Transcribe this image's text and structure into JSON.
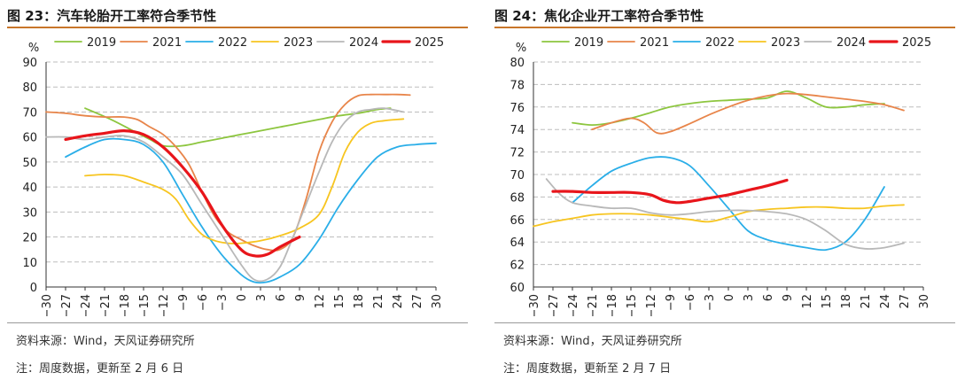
{
  "chart_data": [
    {
      "type": "line",
      "title": "图 23：汽车轮胎开工率符合季节性",
      "ylabel": "%",
      "xlabel": "",
      "xlim": [
        -30,
        30
      ],
      "ylim": [
        0,
        90
      ],
      "x_ticks": [
        -30,
        -27,
        -24,
        -21,
        -18,
        -15,
        -12,
        -9,
        -6,
        -3,
        0,
        3,
        6,
        9,
        12,
        15,
        18,
        21,
        24,
        27,
        30
      ],
      "y_ticks": [
        0,
        10,
        20,
        30,
        40,
        50,
        60,
        70,
        80,
        90
      ],
      "grid": "horizontal-dashed",
      "legend_position": "top",
      "series": [
        {
          "name": "2019",
          "color": "#8dc63f",
          "width": 1.8,
          "points": [
            [
              -24,
              71.5
            ],
            [
              -20,
              67
            ],
            [
              -17,
              63
            ],
            [
              -14,
              59
            ],
            [
              -12,
              56.5
            ],
            [
              -9,
              56.5
            ],
            [
              -6,
              58
            ],
            [
              -3,
              59.5
            ],
            [
              0,
              61
            ],
            [
              3,
              62.5
            ],
            [
              6,
              64
            ],
            [
              9,
              65.5
            ],
            [
              12,
              67
            ],
            [
              15,
              68.5
            ],
            [
              18,
              69.5
            ],
            [
              21,
              71
            ],
            [
              23,
              71.5
            ]
          ]
        },
        {
          "name": "2021",
          "color": "#e8854a",
          "width": 1.8,
          "points": [
            [
              -30,
              70
            ],
            [
              -27,
              69.5
            ],
            [
              -24,
              68.5
            ],
            [
              -21,
              68
            ],
            [
              -18,
              68
            ],
            [
              -16,
              67
            ],
            [
              -14,
              64
            ],
            [
              -12,
              61
            ],
            [
              -10,
              56
            ],
            [
              -8,
              49
            ],
            [
              -6,
              38
            ],
            [
              -4,
              28
            ],
            [
              -2,
              22
            ],
            [
              0,
              19
            ],
            [
              2,
              16.5
            ],
            [
              4,
              15
            ],
            [
              6,
              15
            ],
            [
              8,
              20
            ],
            [
              10,
              35
            ],
            [
              12,
              54
            ],
            [
              14,
              66
            ],
            [
              16,
              73
            ],
            [
              18,
              76.5
            ],
            [
              20,
              77
            ],
            [
              22,
              77
            ],
            [
              24,
              77
            ],
            [
              26,
              76.8
            ]
          ]
        },
        {
          "name": "2022",
          "color": "#2aaee8",
          "width": 1.8,
          "points": [
            [
              -27,
              52
            ],
            [
              -24,
              56
            ],
            [
              -21,
              59
            ],
            [
              -18,
              59
            ],
            [
              -15,
              57
            ],
            [
              -12,
              50
            ],
            [
              -9,
              37
            ],
            [
              -6,
              24
            ],
            [
              -3,
              13
            ],
            [
              0,
              5
            ],
            [
              2,
              2
            ],
            [
              4,
              2
            ],
            [
              6,
              4
            ],
            [
              9,
              9
            ],
            [
              12,
              19
            ],
            [
              15,
              32
            ],
            [
              18,
              43
            ],
            [
              21,
              52
            ],
            [
              24,
              56
            ],
            [
              27,
              57
            ],
            [
              30,
              57.5
            ]
          ]
        },
        {
          "name": "2023",
          "color": "#f7c520",
          "width": 1.8,
          "points": [
            [
              -24,
              44.5
            ],
            [
              -21,
              45
            ],
            [
              -18,
              44.5
            ],
            [
              -15,
              42
            ],
            [
              -12,
              39
            ],
            [
              -10,
              35
            ],
            [
              -8,
              27
            ],
            [
              -6,
              21
            ],
            [
              -4,
              18.5
            ],
            [
              -2,
              17.5
            ],
            [
              0,
              17.5
            ],
            [
              3,
              18.5
            ],
            [
              6,
              20.5
            ],
            [
              9,
              23.5
            ],
            [
              12,
              29
            ],
            [
              14,
              40
            ],
            [
              16,
              54
            ],
            [
              18,
              62
            ],
            [
              20,
              65.5
            ],
            [
              22,
              66.5
            ],
            [
              25,
              67.2
            ]
          ]
        },
        {
          "name": "2024",
          "color": "#b8b8b8",
          "width": 1.8,
          "points": [
            [
              -30,
              60
            ],
            [
              -27,
              60
            ],
            [
              -24,
              59
            ],
            [
              -21,
              60
            ],
            [
              -18,
              60.5
            ],
            [
              -15,
              58
            ],
            [
              -12,
              52
            ],
            [
              -9,
              45
            ],
            [
              -6,
              33
            ],
            [
              -3,
              21
            ],
            [
              0,
              9
            ],
            [
              2,
              3
            ],
            [
              4,
              3
            ],
            [
              6,
              8
            ],
            [
              8,
              20
            ],
            [
              10,
              33
            ],
            [
              12,
              46
            ],
            [
              14,
              58
            ],
            [
              16,
              66
            ],
            [
              18,
              70
            ],
            [
              20,
              71
            ],
            [
              22,
              71.5
            ],
            [
              25,
              70
            ]
          ]
        },
        {
          "name": "2025",
          "color": "#e8151b",
          "width": 3.2,
          "points": [
            [
              -27,
              59
            ],
            [
              -24,
              60.5
            ],
            [
              -21,
              61.5
            ],
            [
              -18,
              62.5
            ],
            [
              -15,
              61
            ],
            [
              -12,
              56
            ],
            [
              -9,
              48
            ],
            [
              -6,
              38
            ],
            [
              -3,
              25
            ],
            [
              0,
              15
            ],
            [
              2,
              12.5
            ],
            [
              4,
              13
            ],
            [
              6,
              16
            ],
            [
              9,
              20
            ]
          ]
        }
      ]
    },
    {
      "type": "line",
      "title": "图 24：焦化企业开工率符合季节性",
      "ylabel": "%",
      "xlabel": "",
      "xlim": [
        -30,
        30
      ],
      "ylim": [
        60,
        80
      ],
      "x_ticks": [
        -30,
        -27,
        -24,
        -21,
        -18,
        -15,
        -12,
        -9,
        -6,
        -3,
        0,
        3,
        6,
        9,
        12,
        15,
        18,
        21,
        24,
        27,
        30
      ],
      "y_ticks": [
        60,
        62,
        64,
        66,
        68,
        70,
        72,
        74,
        76,
        78,
        80
      ],
      "grid": "horizontal-dashed",
      "legend_position": "top",
      "series": [
        {
          "name": "2019",
          "color": "#8dc63f",
          "width": 1.8,
          "points": [
            [
              -24,
              74.6
            ],
            [
              -21,
              74.4
            ],
            [
              -18,
              74.6
            ],
            [
              -15,
              75
            ],
            [
              -12,
              75.5
            ],
            [
              -9,
              76
            ],
            [
              -6,
              76.3
            ],
            [
              -3,
              76.5
            ],
            [
              0,
              76.6
            ],
            [
              3,
              76.7
            ],
            [
              6,
              76.8
            ],
            [
              9,
              77.4
            ],
            [
              12,
              76.8
            ],
            [
              15,
              76
            ],
            [
              18,
              76
            ],
            [
              21,
              76.2
            ],
            [
              24,
              76.3
            ]
          ]
        },
        {
          "name": "2021",
          "color": "#e8854a",
          "width": 1.8,
          "points": [
            [
              -21,
              74
            ],
            [
              -18,
              74.6
            ],
            [
              -15,
              75
            ],
            [
              -13,
              74.6
            ],
            [
              -11,
              73.7
            ],
            [
              -9,
              73.8
            ],
            [
              -6,
              74.5
            ],
            [
              -3,
              75.3
            ],
            [
              0,
              76
            ],
            [
              3,
              76.6
            ],
            [
              6,
              77
            ],
            [
              9,
              77.2
            ],
            [
              12,
              77.1
            ],
            [
              15,
              76.9
            ],
            [
              18,
              76.7
            ],
            [
              21,
              76.5
            ],
            [
              24,
              76.2
            ],
            [
              27,
              75.7
            ]
          ]
        },
        {
          "name": "2022",
          "color": "#2aaee8",
          "width": 1.8,
          "points": [
            [
              -24,
              67.5
            ],
            [
              -21,
              69
            ],
            [
              -18,
              70.3
            ],
            [
              -15,
              71
            ],
            [
              -12,
              71.5
            ],
            [
              -9,
              71.5
            ],
            [
              -6,
              70.8
            ],
            [
              -3,
              69
            ],
            [
              0,
              67
            ],
            [
              3,
              65
            ],
            [
              6,
              64.2
            ],
            [
              9,
              63.8
            ],
            [
              12,
              63.5
            ],
            [
              15,
              63.3
            ],
            [
              18,
              64
            ],
            [
              21,
              66
            ],
            [
              24,
              68.9
            ]
          ]
        },
        {
          "name": "2023",
          "color": "#f7c520",
          "width": 1.8,
          "points": [
            [
              -30,
              65.4
            ],
            [
              -27,
              65.8
            ],
            [
              -24,
              66.1
            ],
            [
              -21,
              66.4
            ],
            [
              -18,
              66.5
            ],
            [
              -15,
              66.5
            ],
            [
              -12,
              66.4
            ],
            [
              -9,
              66.2
            ],
            [
              -6,
              66
            ],
            [
              -3,
              65.8
            ],
            [
              0,
              66.2
            ],
            [
              3,
              66.7
            ],
            [
              6,
              66.9
            ],
            [
              9,
              67
            ],
            [
              12,
              67.1
            ],
            [
              15,
              67.1
            ],
            [
              18,
              67
            ],
            [
              21,
              67
            ],
            [
              24,
              67.2
            ],
            [
              27,
              67.3
            ]
          ]
        },
        {
          "name": "2024",
          "color": "#b8b8b8",
          "width": 1.8,
          "points": [
            [
              -28,
              69.6
            ],
            [
              -26,
              68.3
            ],
            [
              -24,
              67.5
            ],
            [
              -21,
              67.2
            ],
            [
              -18,
              67
            ],
            [
              -15,
              67
            ],
            [
              -12,
              66.6
            ],
            [
              -9,
              66.4
            ],
            [
              -6,
              66.5
            ],
            [
              -3,
              66.7
            ],
            [
              0,
              66.8
            ],
            [
              3,
              66.8
            ],
            [
              6,
              66.7
            ],
            [
              9,
              66.5
            ],
            [
              12,
              66
            ],
            [
              15,
              65
            ],
            [
              18,
              63.8
            ],
            [
              21,
              63.4
            ],
            [
              24,
              63.5
            ],
            [
              27,
              63.9
            ]
          ]
        },
        {
          "name": "2025",
          "color": "#e8151b",
          "width": 3.2,
          "points": [
            [
              -27,
              68.5
            ],
            [
              -24,
              68.5
            ],
            [
              -21,
              68.4
            ],
            [
              -18,
              68.4
            ],
            [
              -15,
              68.4
            ],
            [
              -12,
              68.2
            ],
            [
              -10,
              67.7
            ],
            [
              -8,
              67.5
            ],
            [
              -6,
              67.6
            ],
            [
              -3,
              67.9
            ],
            [
              0,
              68.2
            ],
            [
              3,
              68.6
            ],
            [
              6,
              69
            ],
            [
              9,
              69.5
            ]
          ]
        }
      ]
    }
  ],
  "panels": [
    {
      "source": "资料来源：Wind，天风证券研究所",
      "note": "注：周度数据，更新至 2 月 6 日"
    },
    {
      "source": "资料来源：Wind，天风证券研究所",
      "note": "注：周度数据，更新至 2 月 7 日"
    }
  ]
}
